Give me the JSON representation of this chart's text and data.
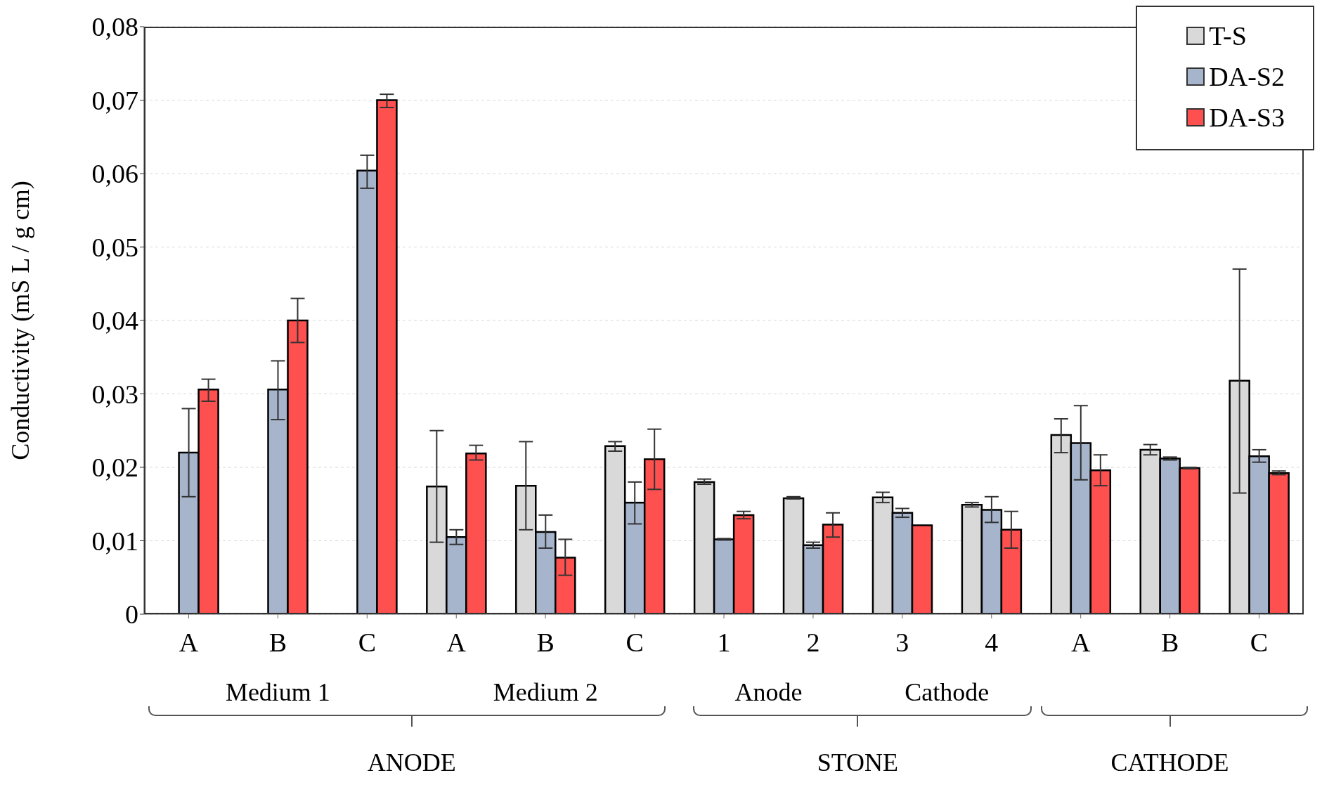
{
  "chart_data": {
    "type": "bar",
    "ylabel": "Conductivity (mS L / g cm)",
    "categories": [
      "A",
      "B",
      "C",
      "A",
      "B",
      "C",
      "1",
      "2",
      "3",
      "4",
      "A",
      "B",
      "C"
    ],
    "series": [
      {
        "name": "T-S",
        "color": "#d9d9d9",
        "values": [
          null,
          null,
          null,
          0.0174,
          0.0175,
          0.0229,
          0.018,
          0.0158,
          0.0159,
          0.0149,
          0.0244,
          0.0224,
          0.0318
        ],
        "errors": [
          null,
          null,
          null,
          [
            0.0098,
            0.025
          ],
          [
            0.0115,
            0.0235
          ],
          [
            0.0222,
            0.0235
          ],
          [
            0.0177,
            0.0184
          ],
          [
            0.0157,
            0.016
          ],
          [
            0.0152,
            0.0166
          ],
          [
            0.0146,
            0.0152
          ],
          [
            0.022,
            0.0266
          ],
          [
            0.0217,
            0.0231
          ],
          [
            0.0165,
            0.047
          ]
        ]
      },
      {
        "name": "DA-S2",
        "color": "#a6b4cc",
        "values": [
          0.022,
          0.0306,
          0.0604,
          0.0105,
          0.0112,
          0.0152,
          0.0102,
          0.0094,
          0.0138,
          0.0142,
          0.0233,
          0.0212,
          0.0215
        ],
        "errors": [
          [
            0.016,
            0.028
          ],
          [
            0.0265,
            0.0345
          ],
          [
            0.058,
            0.0625
          ],
          [
            0.0095,
            0.0115
          ],
          [
            0.009,
            0.0135
          ],
          [
            0.0123,
            0.018
          ],
          [
            0.0101,
            0.0103
          ],
          [
            0.009,
            0.0098
          ],
          [
            0.0132,
            0.0144
          ],
          [
            0.0125,
            0.016
          ],
          [
            0.0183,
            0.0284
          ],
          [
            0.021,
            0.0214
          ],
          [
            0.0207,
            0.0224
          ]
        ]
      },
      {
        "name": "DA-S3",
        "color": "#ff5050",
        "values": [
          0.0306,
          0.04,
          0.07,
          0.0219,
          0.0077,
          0.0211,
          0.0135,
          0.0122,
          0.0121,
          0.0115,
          0.0196,
          0.0199,
          0.0192
        ],
        "errors": [
          [
            0.029,
            0.032
          ],
          [
            0.037,
            0.043
          ],
          [
            0.069,
            0.0708
          ],
          [
            0.021,
            0.023
          ],
          [
            0.0053,
            0.0102
          ],
          [
            0.017,
            0.0252
          ],
          [
            0.013,
            0.014
          ],
          [
            0.0105,
            0.0138
          ],
          null,
          [
            0.009,
            0.014
          ],
          [
            0.0175,
            0.0217
          ],
          [
            0.0198,
            0.02
          ],
          [
            0.019,
            0.0195
          ]
        ]
      }
    ],
    "ylim": [
      0,
      0.08
    ],
    "yticks": [
      0,
      {
        "value": 0.01,
        "label": "0,01"
      },
      {
        "value": 0.02,
        "label": "0,02"
      },
      {
        "value": 0.03,
        "label": "0,03"
      },
      {
        "value": 0.04,
        "label": "0,04"
      },
      {
        "value": 0.05,
        "label": "0,05"
      },
      {
        "value": 0.06,
        "label": "0,06"
      },
      {
        "value": 0.07,
        "label": "0,07"
      },
      {
        "value": 0.08,
        "label": "0,08"
      }
    ],
    "grid": "y",
    "legend": "top right",
    "annotations": [
      "Medium 1",
      "Medium 2",
      "Anode",
      "Cathode",
      "ANODE",
      "STONE",
      "CATHODE"
    ]
  }
}
